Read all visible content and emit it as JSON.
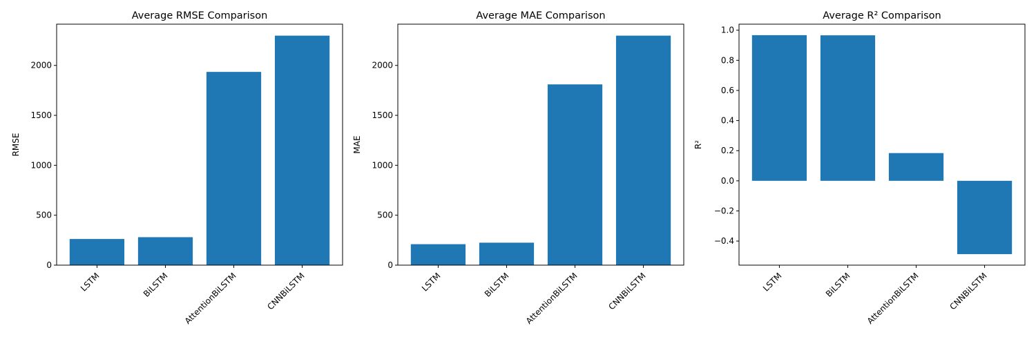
{
  "colors": {
    "bar": "#1f77b4",
    "axis": "#000000",
    "background": "#ffffff"
  },
  "chart_data": [
    {
      "type": "bar",
      "title": "Average RMSE Comparison",
      "xlabel": "",
      "ylabel": "RMSE",
      "categories": [
        "LSTM",
        "BiLSTM",
        "AttentionBiLSTM",
        "CNNBiLSTM"
      ],
      "values": [
        262,
        280,
        1935,
        2298
      ],
      "ylim": [
        0,
        2413
      ],
      "yticks": [
        0,
        500,
        1000,
        1500,
        2000
      ],
      "ytick_labels": [
        "0",
        "500",
        "1000",
        "1500",
        "2000"
      ],
      "grid": false,
      "legend": "none"
    },
    {
      "type": "bar",
      "title": "Average MAE Comparison",
      "xlabel": "",
      "ylabel": "MAE",
      "categories": [
        "LSTM",
        "BiLSTM",
        "AttentionBiLSTM",
        "CNNBiLSTM"
      ],
      "values": [
        210,
        225,
        1810,
        2298
      ],
      "ylim": [
        0,
        2413
      ],
      "yticks": [
        0,
        500,
        1000,
        1500,
        2000
      ],
      "ytick_labels": [
        "0",
        "500",
        "1000",
        "1500",
        "2000"
      ],
      "grid": false,
      "legend": "none"
    },
    {
      "type": "bar",
      "title": "Average R² Comparison",
      "xlabel": "",
      "ylabel": "R²",
      "categories": [
        "LSTM",
        "BiLSTM",
        "AttentionBiLSTM",
        "CNNBiLSTM"
      ],
      "values": [
        0.967,
        0.966,
        0.184,
        -0.487
      ],
      "ylim": [
        -0.56,
        1.04
      ],
      "yticks": [
        -0.4,
        -0.2,
        0.0,
        0.2,
        0.4,
        0.6,
        0.8,
        1.0
      ],
      "ytick_labels": [
        "−0.4",
        "−0.2",
        "0.0",
        "0.2",
        "0.4",
        "0.6",
        "0.8",
        "1.0"
      ],
      "grid": false,
      "legend": "none"
    }
  ]
}
